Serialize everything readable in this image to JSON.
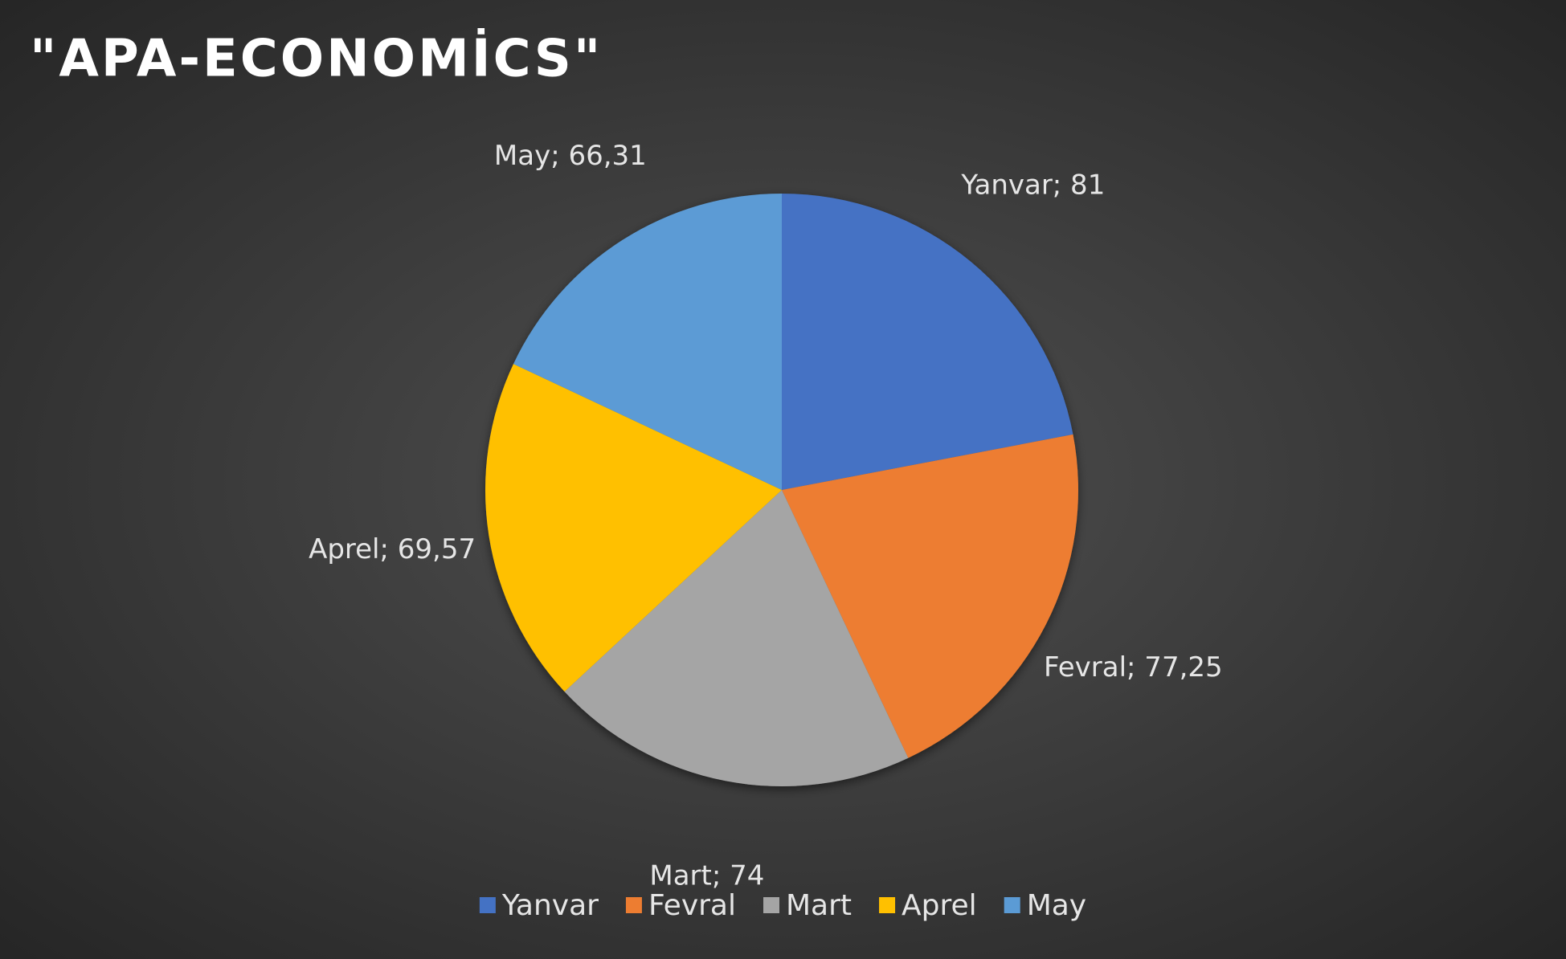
{
  "chart_data": {
    "type": "pie",
    "title": "\"APA-ECONOMİCS\"",
    "categories": [
      "Yanvar",
      "Fevral",
      "Mart",
      "Aprel",
      "May"
    ],
    "values": [
      81,
      77.25,
      74,
      69.57,
      66.31
    ],
    "value_labels": [
      "Yanvar; 81",
      "Fevral; 77,25",
      "Mart; 74",
      "Aprel; 69,57",
      "May; 66,31"
    ],
    "colors": [
      "#4472c4",
      "#ed7d31",
      "#a5a5a5",
      "#ffc000",
      "#5b9bd5"
    ],
    "legend": "bottom"
  }
}
